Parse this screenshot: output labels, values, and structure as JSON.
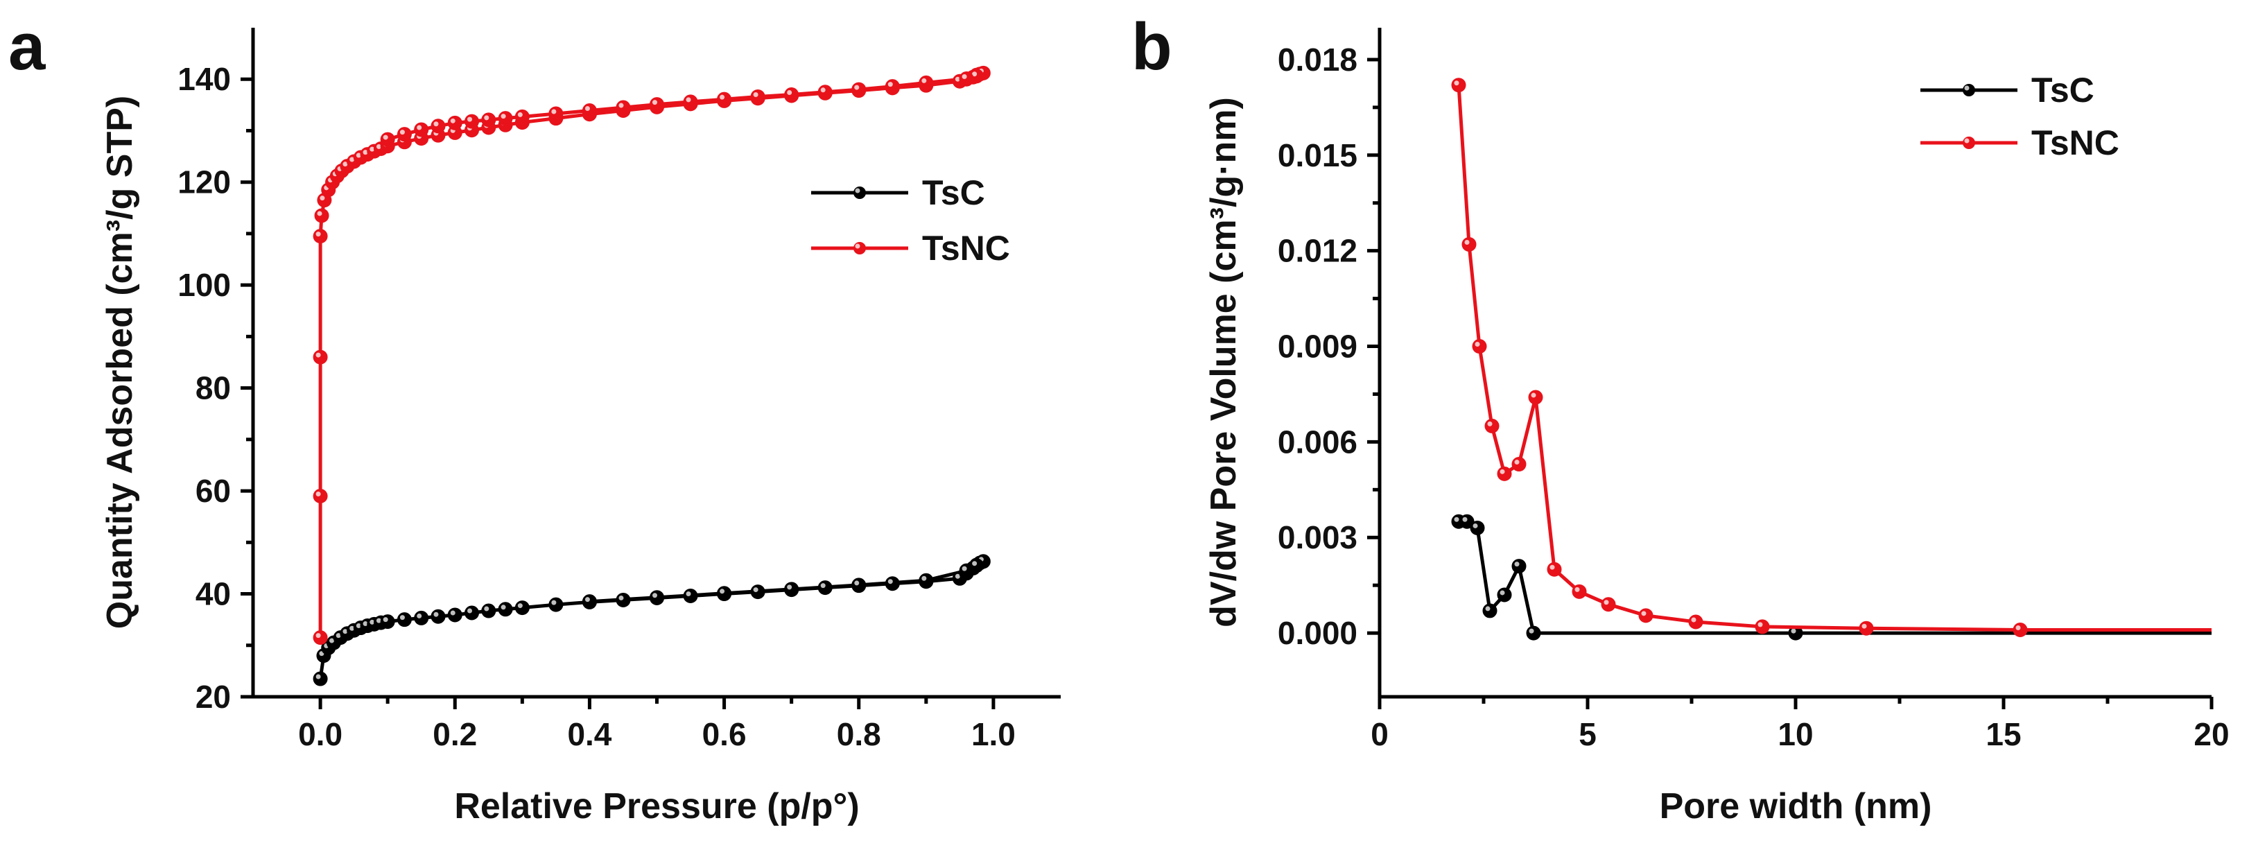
{
  "chart_data": [
    {
      "panel": "a",
      "type": "line",
      "title": "",
      "xlabel": "Relative Pressure (p/p°)",
      "ylabel": "Quantity Adsorbed (cm³/g STP)",
      "xlim": [
        -0.1,
        1.1
      ],
      "ylim": [
        20,
        150
      ],
      "xticks": [
        0.0,
        0.2,
        0.4,
        0.6,
        0.8,
        1.0
      ],
      "xtick_labels": [
        "0.0",
        "0.2",
        "0.4",
        "0.6",
        "0.8",
        "1.0"
      ],
      "yticks": [
        20,
        40,
        60,
        80,
        100,
        120,
        140
      ],
      "ytick_labels": [
        "20",
        "40",
        "60",
        "80",
        "100",
        "120",
        "140"
      ],
      "legend_position": "center-right",
      "series": [
        {
          "name": "TsC",
          "color": "#000000",
          "x": [
            0.0,
            0.005,
            0.012,
            0.02,
            0.03,
            0.04,
            0.05,
            0.06,
            0.07,
            0.08,
            0.09,
            0.1,
            0.125,
            0.15,
            0.175,
            0.2,
            0.225,
            0.25,
            0.275,
            0.3,
            0.35,
            0.4,
            0.45,
            0.5,
            0.55,
            0.6,
            0.65,
            0.7,
            0.75,
            0.8,
            0.85,
            0.9,
            0.95,
            0.96,
            0.97,
            0.975,
            0.98,
            0.985,
            0.975,
            0.96,
            0.9,
            0.8,
            0.7,
            0.6,
            0.5,
            0.4
          ],
          "y": [
            23.5,
            28,
            29.5,
            30.5,
            31.5,
            32.3,
            32.9,
            33.4,
            33.8,
            34.1,
            34.4,
            34.6,
            35,
            35.3,
            35.6,
            35.9,
            36.3,
            36.7,
            37,
            37.3,
            37.9,
            38.4,
            38.8,
            39.2,
            39.6,
            40,
            40.4,
            40.8,
            41.2,
            41.6,
            42,
            42.4,
            43,
            44,
            45,
            45.6,
            46,
            46.3,
            45.5,
            44.5,
            42.6,
            41.7,
            40.9,
            40.1,
            39.3,
            38.5
          ]
        },
        {
          "name": "TsNC",
          "color": "#e8121b",
          "x": [
            0.0,
            0.0,
            0.0,
            0.0,
            0.002,
            0.006,
            0.012,
            0.018,
            0.025,
            0.032,
            0.04,
            0.05,
            0.06,
            0.07,
            0.08,
            0.09,
            0.1,
            0.125,
            0.15,
            0.175,
            0.2,
            0.225,
            0.25,
            0.275,
            0.3,
            0.35,
            0.4,
            0.45,
            0.5,
            0.55,
            0.6,
            0.65,
            0.7,
            0.75,
            0.8,
            0.85,
            0.9,
            0.95,
            0.96,
            0.97,
            0.975,
            0.98,
            0.985,
            0.975,
            0.96,
            0.9,
            0.85,
            0.8,
            0.75,
            0.7,
            0.65,
            0.6,
            0.55,
            0.5,
            0.45,
            0.4,
            0.35,
            0.3,
            0.275,
            0.25,
            0.225,
            0.2,
            0.175,
            0.15,
            0.125,
            0.1
          ],
          "y": [
            31.5,
            59,
            86,
            109.5,
            113.5,
            116.5,
            118.5,
            120,
            121.2,
            122.2,
            123.1,
            124,
            124.8,
            125.4,
            126,
            126.5,
            127,
            127.8,
            128.5,
            129.1,
            129.6,
            130.1,
            130.6,
            131.1,
            131.6,
            132.4,
            133.2,
            133.9,
            134.6,
            135.2,
            135.8,
            136.3,
            136.8,
            137.3,
            137.8,
            138.3,
            138.8,
            139.6,
            140,
            140.4,
            140.8,
            141,
            141.2,
            140.6,
            140.1,
            139.3,
            138.6,
            138,
            137.5,
            137,
            136.6,
            136.1,
            135.6,
            135.1,
            134.5,
            133.9,
            133.3,
            132.7,
            132.4,
            132.1,
            131.8,
            131.5,
            130.9,
            130.2,
            129.3,
            128.3
          ]
        }
      ]
    },
    {
      "panel": "b",
      "type": "line",
      "title": "",
      "xlabel": "Pore width (nm)",
      "ylabel": "dV/dw Pore Volume (cm³/g·nm)",
      "xlim": [
        0,
        20
      ],
      "ylim": [
        -0.002,
        0.019
      ],
      "xticks": [
        0,
        5,
        10,
        15,
        20
      ],
      "xtick_labels": [
        "0",
        "5",
        "10",
        "15",
        "20"
      ],
      "yticks": [
        0.0,
        0.003,
        0.006,
        0.009,
        0.012,
        0.015,
        0.018
      ],
      "ytick_labels": [
        "0.000",
        "0.003",
        "0.006",
        "0.009",
        "0.012",
        "0.015",
        "0.018"
      ],
      "legend_position": "top-right",
      "series": [
        {
          "name": "TsC",
          "color": "#000000",
          "x": [
            1.9,
            2.1,
            2.35,
            2.65,
            3.0,
            3.35,
            3.7,
            10.0,
            20.0
          ],
          "y": [
            0.0035,
            0.0035,
            0.0033,
            0.0007,
            0.0012,
            0.0021,
            0.0,
            0.0,
            0.0
          ],
          "markers": [
            true,
            true,
            true,
            true,
            true,
            true,
            true,
            true,
            false
          ]
        },
        {
          "name": "TsNC",
          "color": "#e8121b",
          "x": [
            1.9,
            2.15,
            2.4,
            2.7,
            3.0,
            3.35,
            3.75,
            4.2,
            4.8,
            5.5,
            6.4,
            7.6,
            9.2,
            11.7,
            15.4,
            20.0
          ],
          "y": [
            0.0172,
            0.0122,
            0.009,
            0.0065,
            0.005,
            0.0053,
            0.0074,
            0.002,
            0.0013,
            0.0009,
            0.00055,
            0.00035,
            0.0002,
            0.00015,
            0.0001,
            0.0001
          ],
          "markers": [
            true,
            true,
            true,
            true,
            true,
            true,
            true,
            true,
            true,
            true,
            true,
            true,
            true,
            true,
            true,
            false
          ]
        }
      ]
    }
  ]
}
